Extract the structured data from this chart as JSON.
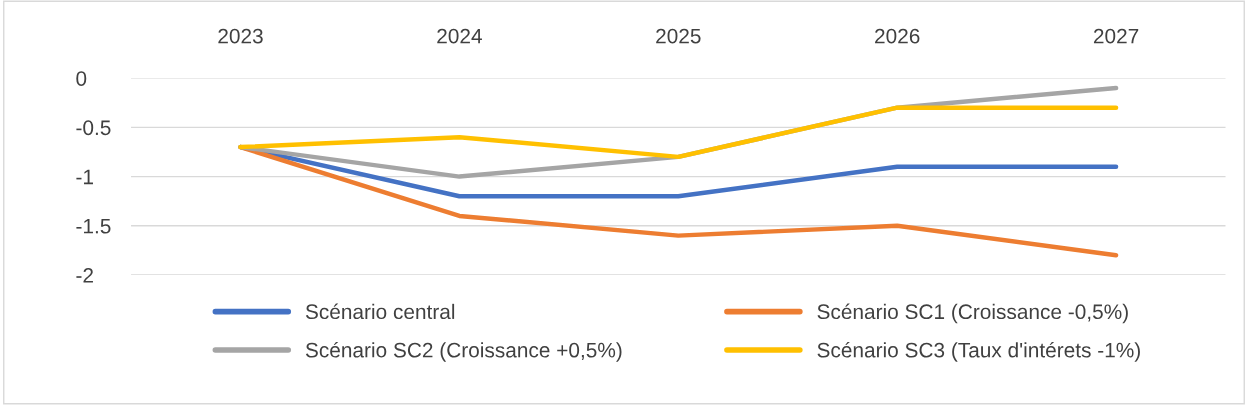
{
  "chart_data": {
    "type": "line",
    "categories": [
      "2023",
      "2024",
      "2025",
      "2026",
      "2027"
    ],
    "series": [
      {
        "name": "Scénario central",
        "color": "#4472c4",
        "values": [
          -0.7,
          -1.2,
          -1.2,
          -0.9,
          -0.9
        ]
      },
      {
        "name": "Scénario SC1 (Croissance -0,5%)",
        "color": "#ed7d31",
        "values": [
          -0.7,
          -1.4,
          -1.6,
          -1.5,
          -1.8
        ]
      },
      {
        "name": "Scénario SC2 (Croissance +0,5%)",
        "color": "#a5a5a5",
        "values": [
          -0.7,
          -1.0,
          -0.8,
          -0.3,
          -0.1
        ]
      },
      {
        "name": "Scénario SC3 (Taux d'intérets -1%)",
        "color": "#ffc000",
        "values": [
          -0.7,
          -0.6,
          -0.8,
          -0.3,
          -0.3
        ]
      }
    ],
    "ylim": [
      -2,
      0
    ],
    "yticks": [
      0,
      {
        "value": -0.5,
        "label": "-0.5"
      },
      {
        "value": -1,
        "label": "-1"
      },
      {
        "value": -1.5,
        "label": "-1.5"
      },
      {
        "value": -2,
        "label": "-2"
      }
    ],
    "grid": "y",
    "legend": "bottom",
    "marker": "none",
    "line_style": "solid"
  }
}
